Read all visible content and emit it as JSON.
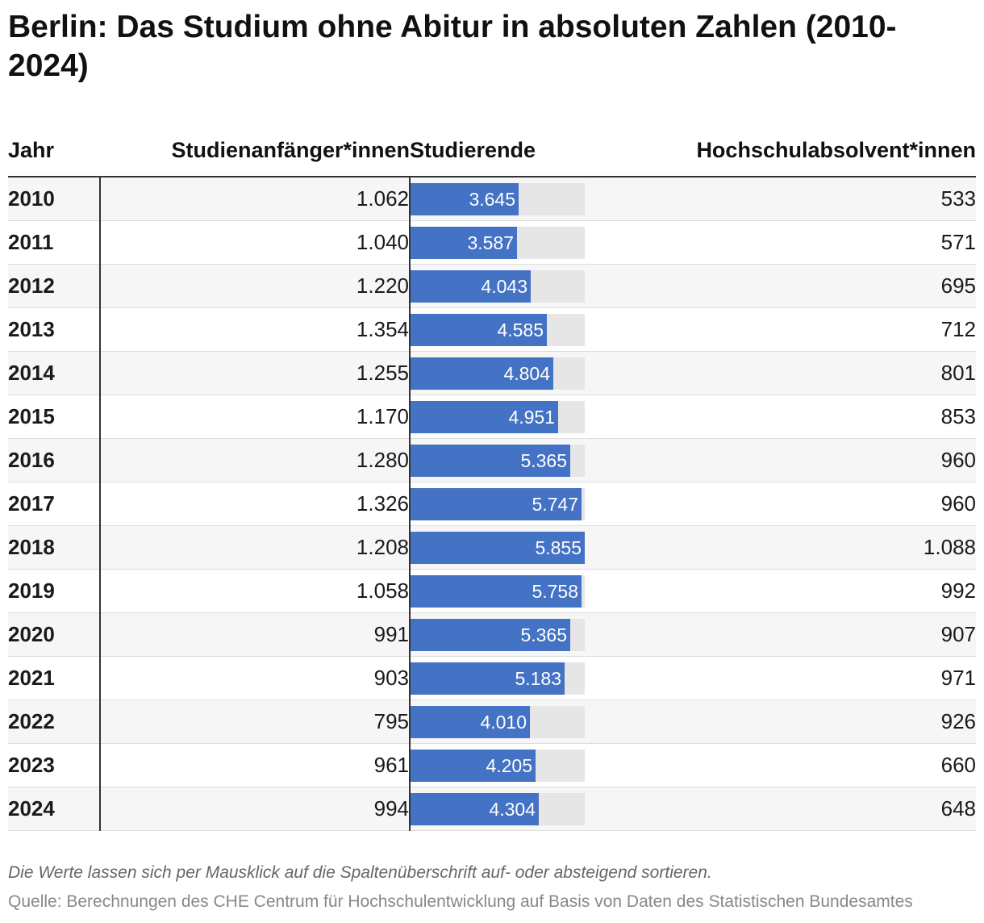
{
  "title": "Berlin: Das Studium ohne Abitur in absoluten Zahlen (2010-2024)",
  "note": "Die Werte lassen sich per Mausklick auf die Spaltenüberschrift auf- oder absteigend sortieren.",
  "source": "Quelle: Berechnungen des CHE Centrum für Hochschulentwicklung auf Basis von Daten des Statistischen Bundesamtes",
  "colors": {
    "bar": "#4472c4",
    "bar_track": "#e6e6e6",
    "row_stripe": "#f6f6f6"
  },
  "chart_data": {
    "type": "table",
    "columns": [
      "Jahr",
      "Studienanfänger*innen",
      "Studierende",
      "Hochschulabsolvent*innen"
    ],
    "bar_column": "Studierende",
    "bar_max": 5855,
    "rows": [
      {
        "jahr": "2010",
        "anfaenger": "1.062",
        "studierende": 3645,
        "studierende_label": "3.645",
        "absolventen": "533"
      },
      {
        "jahr": "2011",
        "anfaenger": "1.040",
        "studierende": 3587,
        "studierende_label": "3.587",
        "absolventen": "571"
      },
      {
        "jahr": "2012",
        "anfaenger": "1.220",
        "studierende": 4043,
        "studierende_label": "4.043",
        "absolventen": "695"
      },
      {
        "jahr": "2013",
        "anfaenger": "1.354",
        "studierende": 4585,
        "studierende_label": "4.585",
        "absolventen": "712"
      },
      {
        "jahr": "2014",
        "anfaenger": "1.255",
        "studierende": 4804,
        "studierende_label": "4.804",
        "absolventen": "801"
      },
      {
        "jahr": "2015",
        "anfaenger": "1.170",
        "studierende": 4951,
        "studierende_label": "4.951",
        "absolventen": "853"
      },
      {
        "jahr": "2016",
        "anfaenger": "1.280",
        "studierende": 5365,
        "studierende_label": "5.365",
        "absolventen": "960"
      },
      {
        "jahr": "2017",
        "anfaenger": "1.326",
        "studierende": 5747,
        "studierende_label": "5.747",
        "absolventen": "960"
      },
      {
        "jahr": "2018",
        "anfaenger": "1.208",
        "studierende": 5855,
        "studierende_label": "5.855",
        "absolventen": "1.088"
      },
      {
        "jahr": "2019",
        "anfaenger": "1.058",
        "studierende": 5758,
        "studierende_label": "5.758",
        "absolventen": "992"
      },
      {
        "jahr": "2020",
        "anfaenger": "991",
        "studierende": 5365,
        "studierende_label": "5.365",
        "absolventen": "907"
      },
      {
        "jahr": "2021",
        "anfaenger": "903",
        "studierende": 5183,
        "studierende_label": "5.183",
        "absolventen": "971"
      },
      {
        "jahr": "2022",
        "anfaenger": "795",
        "studierende": 4010,
        "studierende_label": "4.010",
        "absolventen": "926"
      },
      {
        "jahr": "2023",
        "anfaenger": "961",
        "studierende": 4205,
        "studierende_label": "4.205",
        "absolventen": "660"
      },
      {
        "jahr": "2024",
        "anfaenger": "994",
        "studierende": 4304,
        "studierende_label": "4.304",
        "absolventen": "648"
      }
    ]
  }
}
